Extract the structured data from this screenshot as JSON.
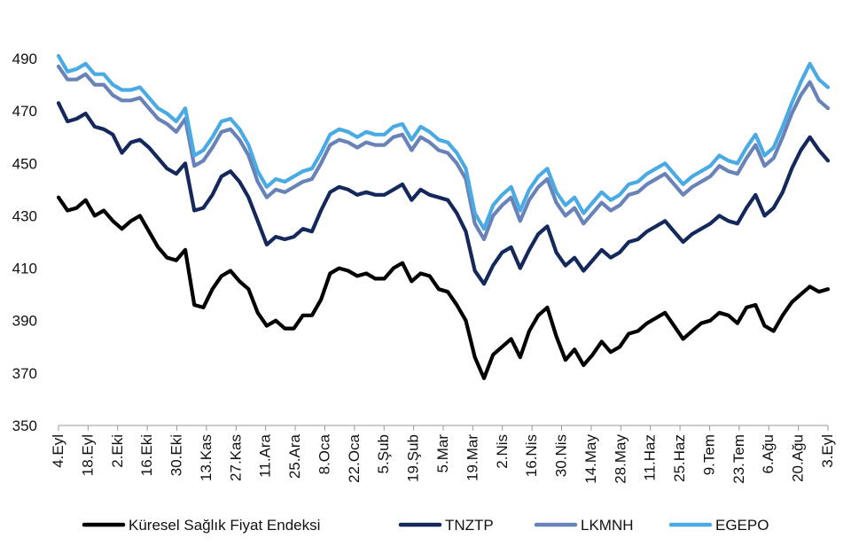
{
  "chart_data": {
    "type": "line",
    "title": "",
    "xlabel": "",
    "ylabel": "",
    "ylim": [
      350,
      495
    ],
    "yticks": [
      350,
      370,
      390,
      410,
      430,
      450,
      470,
      490
    ],
    "grid": false,
    "legend_position": "bottom",
    "x_tick_labels": [
      "4.Eyl",
      "18.Eyl",
      "2.Eki",
      "16.Eki",
      "30.Eki",
      "13.Kas",
      "27.Kas",
      "11.Ara",
      "25.Ara",
      "8.Oca",
      "22.Oca",
      "5.Şub",
      "19.Şub",
      "5.Mar",
      "19.Mar",
      "2.Nis",
      "16.Nis",
      "30.Nis",
      "14.May",
      "28.May",
      "11.Haz",
      "25.Haz",
      "9.Tem",
      "23.Tem",
      "6.Ağu",
      "20.Ağu",
      "3.Eyl"
    ],
    "series": [
      {
        "name": "Küresel Sağlık Fiyat Endeksi",
        "color": "#000000",
        "values": [
          437,
          432,
          433,
          436,
          430,
          432,
          428,
          425,
          428,
          430,
          424,
          418,
          414,
          413,
          417,
          396,
          395,
          402,
          407,
          409,
          405,
          402,
          393,
          388,
          390,
          387,
          387,
          392,
          392,
          398,
          408,
          410,
          409,
          407,
          408,
          406,
          406,
          410,
          412,
          405,
          408,
          407,
          402,
          401,
          396,
          390,
          376,
          368,
          377,
          380,
          383,
          376,
          386,
          392,
          395,
          384,
          375,
          379,
          373,
          377,
          382,
          378,
          380,
          385,
          386,
          389,
          391,
          393,
          388,
          383,
          386,
          389,
          390,
          393,
          392,
          389,
          395,
          396,
          388,
          386,
          392,
          397,
          400,
          403,
          401,
          402
        ]
      },
      {
        "name": "TNZTP",
        "color": "#14285c",
        "values": [
          473,
          466,
          467,
          469,
          464,
          463,
          461,
          454,
          458,
          459,
          456,
          452,
          448,
          446,
          450,
          432,
          433,
          438,
          445,
          447,
          443,
          437,
          428,
          419,
          422,
          421,
          422,
          425,
          424,
          432,
          439,
          441,
          440,
          438,
          439,
          438,
          438,
          440,
          442,
          436,
          440,
          438,
          437,
          436,
          431,
          424,
          409,
          404,
          411,
          416,
          418,
          410,
          417,
          423,
          426,
          416,
          411,
          414,
          409,
          413,
          417,
          414,
          416,
          420,
          421,
          424,
          426,
          428,
          424,
          420,
          423,
          425,
          427,
          430,
          428,
          427,
          433,
          438,
          430,
          433,
          439,
          448,
          455,
          460,
          455,
          451
        ]
      },
      {
        "name": "LKMNH",
        "color": "#6983b9",
        "values": [
          487,
          482,
          482,
          484,
          480,
          480,
          476,
          474,
          474,
          475,
          471,
          467,
          465,
          462,
          467,
          449,
          451,
          456,
          462,
          463,
          459,
          453,
          443,
          437,
          440,
          439,
          441,
          443,
          444,
          450,
          457,
          459,
          458,
          456,
          458,
          457,
          457,
          460,
          461,
          455,
          460,
          458,
          455,
          454,
          450,
          444,
          427,
          421,
          430,
          434,
          437,
          428,
          436,
          441,
          444,
          435,
          430,
          433,
          427,
          431,
          435,
          432,
          434,
          438,
          439,
          442,
          444,
          446,
          442,
          438,
          441,
          443,
          445,
          449,
          447,
          446,
          452,
          457,
          449,
          452,
          460,
          469,
          476,
          481,
          474,
          471
        ]
      },
      {
        "name": "EGEPO",
        "color": "#4aaae4",
        "values": [
          491,
          485,
          486,
          488,
          484,
          484,
          480,
          478,
          478,
          479,
          475,
          471,
          469,
          466,
          471,
          453,
          455,
          460,
          466,
          467,
          463,
          457,
          447,
          441,
          444,
          443,
          445,
          447,
          448,
          454,
          461,
          463,
          462,
          460,
          462,
          461,
          461,
          464,
          465,
          459,
          464,
          462,
          459,
          458,
          454,
          448,
          431,
          425,
          434,
          438,
          441,
          432,
          440,
          445,
          448,
          439,
          434,
          437,
          431,
          435,
          439,
          436,
          438,
          442,
          443,
          446,
          448,
          450,
          446,
          442,
          445,
          447,
          449,
          453,
          451,
          450,
          456,
          461,
          453,
          456,
          464,
          473,
          481,
          488,
          482,
          479
        ]
      }
    ]
  }
}
